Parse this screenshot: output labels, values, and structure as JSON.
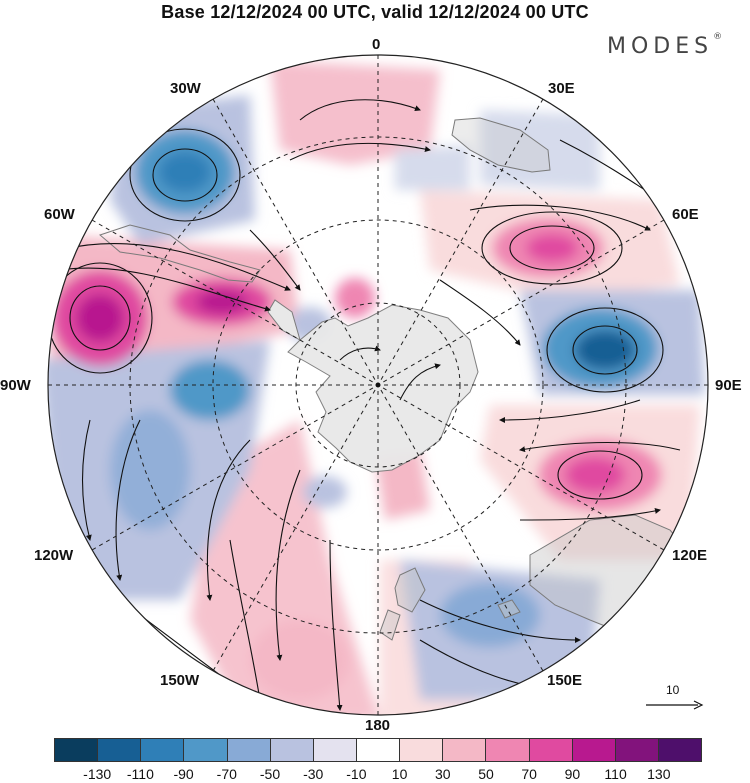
{
  "title": "Base 12/12/2024 00 UTC, valid 12/12/2024 00 UTC",
  "brand": "MODES",
  "brand_mark": "®",
  "reference_vector": {
    "label": "10"
  },
  "longitude_labels": {
    "n0": "0",
    "e30": "30E",
    "e60": "60E",
    "e90": "90E",
    "e120": "120E",
    "e150": "150E",
    "s180": "180",
    "w150": "150W",
    "w120": "120W",
    "w90": "90W",
    "w60": "60W",
    "w30": "30W"
  },
  "colorbar": {
    "tick_labels": [
      "-130",
      "-110",
      "-90",
      "-70",
      "-50",
      "-30",
      "-10",
      "10",
      "30",
      "50",
      "70",
      "90",
      "110",
      "130"
    ],
    "colors": [
      "#0a3d5e",
      "#175f94",
      "#2f7fb7",
      "#5098c8",
      "#88aad6",
      "#b9c2e0",
      "#e4e2ef",
      "#ffffff",
      "#f9dcdd",
      "#f4b8c6",
      "#ef86b2",
      "#e04aa0",
      "#b8198f",
      "#82137c",
      "#4e0f6b"
    ]
  },
  "map_colors": {
    "ocean_background": "#ffffff",
    "antarctica": "#e8e8e8",
    "coastline": "#7a7a7a",
    "grid": "#222222",
    "vectors": "#111111"
  }
}
